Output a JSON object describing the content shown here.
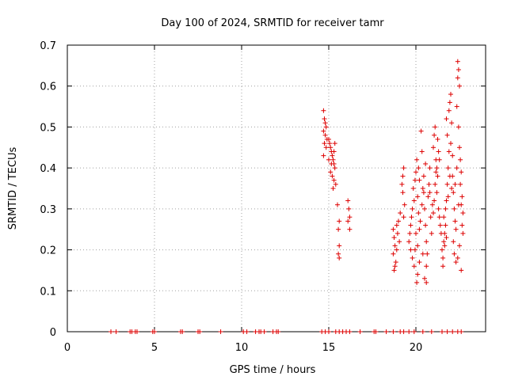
{
  "chart_data": {
    "type": "scatter",
    "title": "Day 100 of 2024, SRMTID for receiver tamr",
    "xlabel": "GPS time / hours",
    "ylabel": "SRMTID / TECUs",
    "xlim": [
      0,
      24
    ],
    "ylim": [
      0,
      0.7
    ],
    "xticks": [
      0,
      5,
      10,
      15,
      20
    ],
    "yticks": [
      0,
      0.1,
      0.2,
      0.3,
      0.4,
      0.5,
      0.6,
      0.7
    ],
    "xtick_labels": [
      "0",
      "5",
      "10",
      "15",
      "20"
    ],
    "ytick_labels": [
      "0",
      "0.1",
      "0.2",
      "0.3",
      "0.4",
      "0.5",
      "0.6",
      "0.7"
    ],
    "grid": true,
    "marker": "+",
    "color": "#dd0000",
    "series": [
      {
        "name": "SRMTID",
        "points": [
          [
            2.5,
            0
          ],
          [
            2.8,
            0
          ],
          [
            3.6,
            0
          ],
          [
            3.7,
            0
          ],
          [
            3.9,
            0
          ],
          [
            4.0,
            0
          ],
          [
            4.9,
            0
          ],
          [
            5.0,
            0
          ],
          [
            6.5,
            0
          ],
          [
            6.6,
            0
          ],
          [
            7.5,
            0
          ],
          [
            7.6,
            0
          ],
          [
            8.8,
            0
          ],
          [
            10.1,
            0
          ],
          [
            10.3,
            0
          ],
          [
            10.8,
            0
          ],
          [
            11.0,
            0
          ],
          [
            11.1,
            0
          ],
          [
            11.3,
            0
          ],
          [
            11.8,
            0
          ],
          [
            12.0,
            0
          ],
          [
            12.1,
            0
          ],
          [
            14.6,
            0
          ],
          [
            14.8,
            0
          ],
          [
            15.0,
            0
          ],
          [
            15.4,
            0
          ],
          [
            15.6,
            0
          ],
          [
            15.8,
            0
          ],
          [
            16.0,
            0
          ],
          [
            16.2,
            0
          ],
          [
            16.8,
            0
          ],
          [
            17.6,
            0
          ],
          [
            17.7,
            0
          ],
          [
            18.3,
            0
          ],
          [
            18.7,
            0
          ],
          [
            19.1,
            0
          ],
          [
            19.3,
            0
          ],
          [
            19.6,
            0
          ],
          [
            19.9,
            0
          ],
          [
            20.4,
            0
          ],
          [
            20.9,
            0
          ],
          [
            21.5,
            0
          ],
          [
            21.8,
            0
          ],
          [
            22.1,
            0
          ],
          [
            22.4,
            0
          ],
          [
            22.6,
            0
          ],
          [
            14.7,
            0.54
          ],
          [
            14.75,
            0.52
          ],
          [
            14.8,
            0.51
          ],
          [
            14.85,
            0.5
          ],
          [
            14.7,
            0.49
          ],
          [
            14.8,
            0.48
          ],
          [
            14.9,
            0.47
          ],
          [
            14.75,
            0.46
          ],
          [
            14.85,
            0.45
          ],
          [
            14.7,
            0.43
          ],
          [
            15.0,
            0.47
          ],
          [
            15.05,
            0.46
          ],
          [
            15.1,
            0.45
          ],
          [
            15.15,
            0.44
          ],
          [
            15.2,
            0.43
          ],
          [
            15.25,
            0.42
          ],
          [
            15.3,
            0.41
          ],
          [
            15.35,
            0.4
          ],
          [
            15.1,
            0.39
          ],
          [
            15.2,
            0.38
          ],
          [
            15.3,
            0.37
          ],
          [
            15.4,
            0.36
          ],
          [
            15.25,
            0.35
          ],
          [
            15.15,
            0.41
          ],
          [
            15.3,
            0.44
          ],
          [
            15.0,
            0.42
          ],
          [
            15.35,
            0.46
          ],
          [
            15.5,
            0.31
          ],
          [
            15.6,
            0.27
          ],
          [
            15.55,
            0.25
          ],
          [
            15.6,
            0.21
          ],
          [
            15.55,
            0.19
          ],
          [
            15.6,
            0.18
          ],
          [
            16.1,
            0.32
          ],
          [
            16.15,
            0.3
          ],
          [
            16.2,
            0.28
          ],
          [
            16.1,
            0.27
          ],
          [
            16.2,
            0.25
          ],
          [
            18.7,
            0.25
          ],
          [
            18.75,
            0.23
          ],
          [
            18.8,
            0.21
          ],
          [
            18.7,
            0.19
          ],
          [
            18.85,
            0.17
          ],
          [
            18.75,
            0.15
          ],
          [
            18.8,
            0.16
          ],
          [
            18.9,
            0.2
          ],
          [
            18.95,
            0.24
          ],
          [
            19.0,
            0.27
          ],
          [
            19.1,
            0.29
          ],
          [
            19.05,
            0.22
          ],
          [
            18.9,
            0.26
          ],
          [
            19.2,
            0.36
          ],
          [
            19.25,
            0.38
          ],
          [
            19.3,
            0.4
          ],
          [
            19.25,
            0.34
          ],
          [
            19.3,
            0.28
          ],
          [
            19.35,
            0.31
          ],
          [
            19.6,
            0.22
          ],
          [
            19.65,
            0.24
          ],
          [
            19.7,
            0.26
          ],
          [
            19.75,
            0.28
          ],
          [
            19.8,
            0.3
          ],
          [
            19.7,
            0.2
          ],
          [
            19.8,
            0.18
          ],
          [
            19.9,
            0.16
          ],
          [
            19.95,
            0.2
          ],
          [
            20.0,
            0.24
          ],
          [
            19.9,
            0.32
          ],
          [
            19.85,
            0.35
          ],
          [
            19.95,
            0.37
          ],
          [
            20.0,
            0.39
          ],
          [
            20.05,
            0.42
          ],
          [
            20.1,
            0.33
          ],
          [
            20.15,
            0.29
          ],
          [
            20.2,
            0.25
          ],
          [
            20.1,
            0.21
          ],
          [
            20.2,
            0.17
          ],
          [
            20.05,
            0.12
          ],
          [
            20.1,
            0.14
          ],
          [
            20.25,
            0.27
          ],
          [
            20.3,
            0.49
          ],
          [
            20.35,
            0.31
          ],
          [
            20.4,
            0.35
          ],
          [
            20.45,
            0.38
          ],
          [
            20.5,
            0.3
          ],
          [
            20.55,
            0.26
          ],
          [
            20.6,
            0.22
          ],
          [
            20.5,
            0.13
          ],
          [
            20.6,
            0.16
          ],
          [
            20.65,
            0.19
          ],
          [
            20.7,
            0.33
          ],
          [
            20.75,
            0.36
          ],
          [
            20.8,
            0.4
          ],
          [
            20.85,
            0.28
          ],
          [
            20.9,
            0.24
          ],
          [
            20.95,
            0.31
          ],
          [
            21.0,
            0.29
          ],
          [
            20.4,
            0.19
          ],
          [
            20.6,
            0.12
          ],
          [
            20.8,
            0.34
          ],
          [
            20.55,
            0.41
          ],
          [
            20.2,
            0.37
          ],
          [
            20.35,
            0.44
          ],
          [
            20.15,
            0.4
          ],
          [
            20.45,
            0.34
          ],
          [
            21.0,
            0.45
          ],
          [
            21.05,
            0.48
          ],
          [
            21.1,
            0.5
          ],
          [
            21.15,
            0.42
          ],
          [
            21.2,
            0.4
          ],
          [
            21.25,
            0.38
          ],
          [
            21.3,
            0.44
          ],
          [
            21.1,
            0.36
          ],
          [
            21.2,
            0.34
          ],
          [
            21.05,
            0.32
          ],
          [
            21.3,
            0.3
          ],
          [
            21.35,
            0.28
          ],
          [
            21.4,
            0.26
          ],
          [
            21.45,
            0.24
          ],
          [
            21.25,
            0.47
          ],
          [
            21.15,
            0.39
          ],
          [
            21.35,
            0.42
          ],
          [
            21.5,
            0.2
          ],
          [
            21.55,
            0.18
          ],
          [
            21.6,
            0.22
          ],
          [
            21.65,
            0.24
          ],
          [
            21.7,
            0.26
          ],
          [
            21.55,
            0.16
          ],
          [
            21.6,
            0.28
          ],
          [
            21.7,
            0.3
          ],
          [
            21.75,
            0.32
          ],
          [
            21.8,
            0.36
          ],
          [
            21.85,
            0.4
          ],
          [
            21.9,
            0.44
          ],
          [
            21.8,
            0.48
          ],
          [
            21.75,
            0.52
          ],
          [
            21.9,
            0.54
          ],
          [
            21.95,
            0.56
          ],
          [
            22.0,
            0.58
          ],
          [
            22.05,
            0.51
          ],
          [
            22.0,
            0.46
          ],
          [
            22.1,
            0.43
          ],
          [
            21.65,
            0.21
          ],
          [
            21.75,
            0.23
          ],
          [
            21.85,
            0.33
          ],
          [
            21.95,
            0.38
          ],
          [
            22.05,
            0.35
          ],
          [
            22.1,
            0.38
          ],
          [
            22.15,
            0.34
          ],
          [
            22.2,
            0.3
          ],
          [
            22.25,
            0.27
          ],
          [
            22.3,
            0.25
          ],
          [
            22.15,
            0.22
          ],
          [
            22.2,
            0.19
          ],
          [
            22.3,
            0.17
          ],
          [
            22.4,
            0.66
          ],
          [
            22.45,
            0.64
          ],
          [
            22.4,
            0.62
          ],
          [
            22.5,
            0.6
          ],
          [
            22.35,
            0.55
          ],
          [
            22.45,
            0.5
          ],
          [
            22.5,
            0.45
          ],
          [
            22.55,
            0.42
          ],
          [
            22.6,
            0.39
          ],
          [
            22.55,
            0.36
          ],
          [
            22.65,
            0.33
          ],
          [
            22.6,
            0.31
          ],
          [
            22.7,
            0.29
          ],
          [
            22.65,
            0.26
          ],
          [
            22.7,
            0.24
          ],
          [
            22.5,
            0.21
          ],
          [
            22.4,
            0.18
          ],
          [
            22.6,
            0.15
          ],
          [
            22.35,
            0.4
          ],
          [
            22.25,
            0.36
          ],
          [
            22.45,
            0.31
          ]
        ]
      }
    ]
  }
}
